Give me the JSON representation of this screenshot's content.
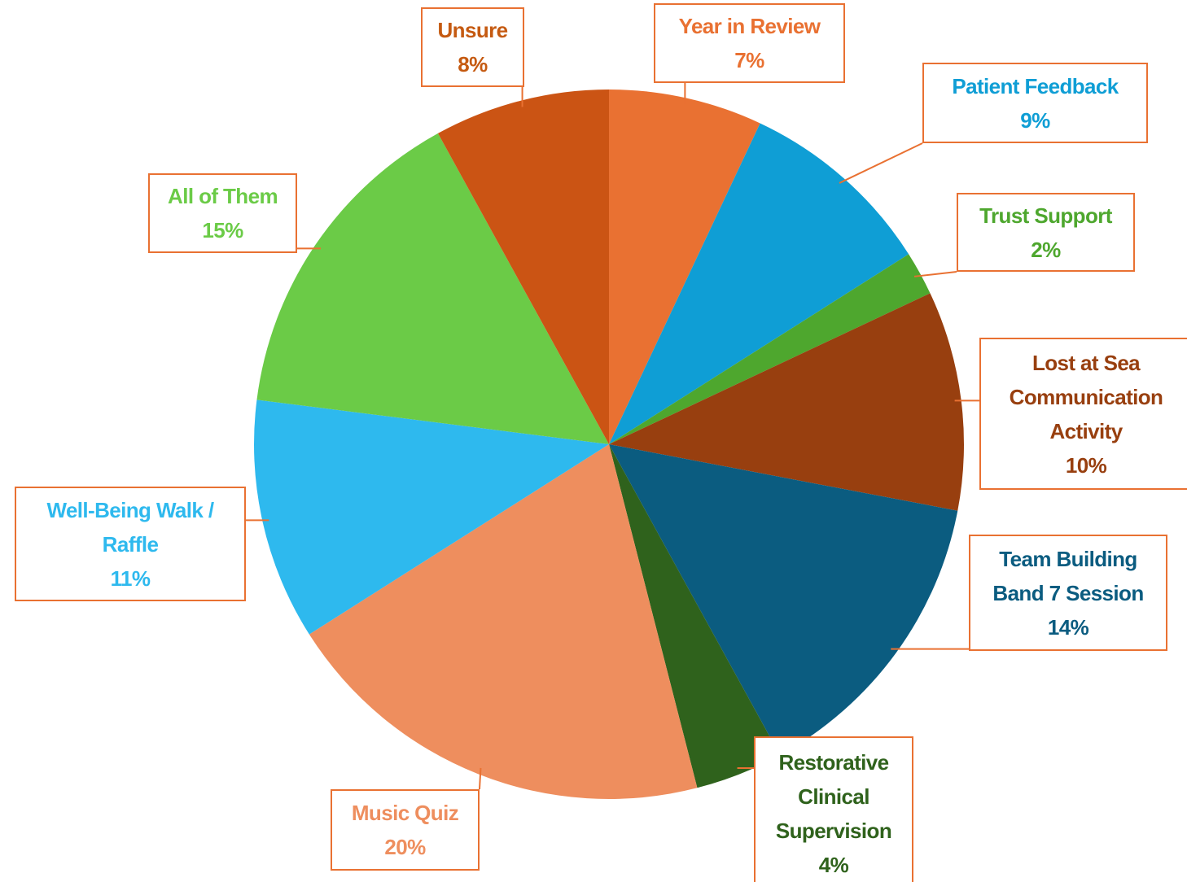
{
  "chart_data": {
    "type": "pie",
    "categories": [
      "Year in Review",
      "Patient Feedback",
      "Trust Support",
      "Lost at Sea Communication Activity",
      "Team Building Band 7 Session",
      "Restorative Clinical Supervision",
      "Music Quiz",
      "Well-Being Walk / Raffle",
      "All of Them",
      "Unsure"
    ],
    "values": [
      7,
      9,
      2,
      10,
      14,
      4,
      20,
      11,
      15,
      8
    ],
    "value_labels": [
      "7%",
      "9%",
      "2%",
      "10%",
      "14%",
      "4%",
      "20%",
      "11%",
      "15%",
      "8%"
    ],
    "colors": [
      "#e97132",
      "#0f9ed5",
      "#4ea72e",
      "#983f0f",
      "#0b5c80",
      "#2f621c",
      "#ee8e5e",
      "#2eb9ee",
      "#6bcb47",
      "#cb5414"
    ],
    "label_colors": [
      "#e97132",
      "#0f9ed5",
      "#4ea72e",
      "#983f0f",
      "#0b5c80",
      "#2f621c",
      "#ee8e5e",
      "#2eb9ee",
      "#6bcb47",
      "#c55a11"
    ]
  }
}
